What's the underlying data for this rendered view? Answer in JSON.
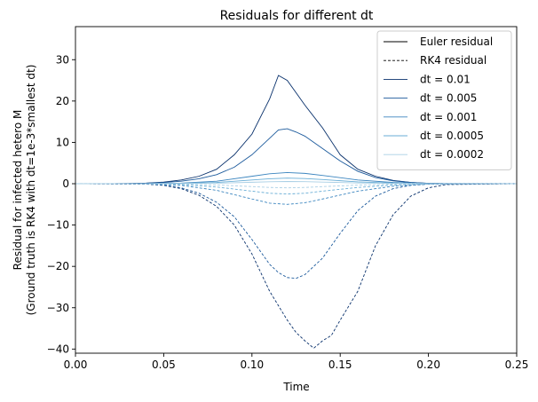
{
  "chart_data": {
    "type": "line",
    "title": "Residuals for different dt",
    "xlabel": "Time",
    "ylabel_lines": [
      "Residual for infected hetero M",
      "(Ground truth is RK4 with dt=1e-3*smallest dt)"
    ],
    "xlim": [
      0,
      0.25
    ],
    "ylim": [
      -41,
      38
    ],
    "xticks": [
      0,
      0.05,
      0.1,
      0.15,
      0.2,
      0.25
    ],
    "xtick_labels": [
      "0.00",
      "0.05",
      "0.10",
      "0.15",
      "0.20",
      "0.25"
    ],
    "yticks": [
      -40,
      -30,
      -20,
      -10,
      0,
      10,
      20,
      30
    ],
    "ytick_labels": [
      "−40",
      "−30",
      "−20",
      "−10",
      "0",
      "10",
      "20",
      "30"
    ],
    "grid": false,
    "legend_position": "top-right",
    "legend": [
      {
        "label": "Euler residual",
        "color": "#000000",
        "style": "solid"
      },
      {
        "label": "RK4 residual",
        "color": "#000000",
        "style": "dashed"
      },
      {
        "label": "dt = 0.01",
        "color": "#08306b",
        "style": "solid"
      },
      {
        "label": "dt = 0.005",
        "color": "#1c5a9c",
        "style": "solid"
      },
      {
        "label": "dt = 0.001",
        "color": "#3b85bf",
        "style": "solid"
      },
      {
        "label": "dt = 0.0005",
        "color": "#6aaed6",
        "style": "solid"
      },
      {
        "label": "dt = 0.0002",
        "color": "#a9cfe5",
        "style": "solid"
      }
    ],
    "series": [
      {
        "dt": "0.01",
        "method": "Euler",
        "color": "#08306b",
        "dash": false,
        "x": [
          0.0,
          0.02,
          0.03,
          0.04,
          0.05,
          0.06,
          0.07,
          0.08,
          0.09,
          0.1,
          0.11,
          0.115,
          0.12,
          0.125,
          0.13,
          0.14,
          0.15,
          0.16,
          0.17,
          0.18,
          0.19,
          0.2,
          0.21,
          0.25
        ],
        "y": [
          0,
          0,
          0.05,
          0.15,
          0.4,
          0.9,
          1.8,
          3.5,
          7.0,
          12.0,
          20.5,
          26.2,
          25.0,
          22.0,
          19.0,
          13.5,
          7.0,
          3.5,
          1.8,
          0.8,
          0.3,
          0.1,
          0,
          0
        ]
      },
      {
        "dt": "0.005",
        "method": "Euler",
        "color": "#1c5a9c",
        "dash": false,
        "x": [
          0.0,
          0.02,
          0.03,
          0.04,
          0.05,
          0.06,
          0.07,
          0.08,
          0.09,
          0.1,
          0.11,
          0.115,
          0.12,
          0.125,
          0.13,
          0.14,
          0.15,
          0.16,
          0.17,
          0.18,
          0.19,
          0.2,
          0.21,
          0.25
        ],
        "y": [
          0,
          0,
          0.05,
          0.12,
          0.3,
          0.6,
          1.2,
          2.2,
          4.0,
          7.0,
          11.0,
          13.0,
          13.3,
          12.5,
          11.5,
          8.5,
          5.5,
          3.0,
          1.5,
          0.7,
          0.3,
          0.1,
          0,
          0
        ]
      },
      {
        "dt": "0.001",
        "method": "Euler",
        "color": "#3b85bf",
        "dash": false,
        "x": [
          0.0,
          0.04,
          0.06,
          0.08,
          0.1,
          0.11,
          0.12,
          0.13,
          0.14,
          0.16,
          0.18,
          0.2,
          0.25
        ],
        "y": [
          0,
          0.03,
          0.15,
          0.6,
          1.8,
          2.4,
          2.7,
          2.5,
          2.0,
          0.9,
          0.3,
          0.05,
          0
        ]
      },
      {
        "dt": "0.0005",
        "method": "Euler",
        "color": "#6aaed6",
        "dash": false,
        "x": [
          0.0,
          0.04,
          0.06,
          0.08,
          0.1,
          0.11,
          0.12,
          0.13,
          0.14,
          0.16,
          0.18,
          0.2,
          0.25
        ],
        "y": [
          0,
          0.02,
          0.08,
          0.3,
          0.9,
          1.2,
          1.35,
          1.25,
          1.0,
          0.45,
          0.15,
          0.03,
          0
        ]
      },
      {
        "dt": "0.0002",
        "method": "Euler",
        "color": "#a9cfe5",
        "dash": false,
        "x": [
          0.0,
          0.04,
          0.06,
          0.08,
          0.1,
          0.11,
          0.12,
          0.13,
          0.14,
          0.16,
          0.18,
          0.2,
          0.25
        ],
        "y": [
          0,
          0.01,
          0.03,
          0.12,
          0.35,
          0.48,
          0.54,
          0.5,
          0.4,
          0.18,
          0.06,
          0.01,
          0
        ]
      },
      {
        "dt": "0.01",
        "method": "RK4",
        "color": "#08306b",
        "dash": true,
        "x": [
          0.0,
          0.04,
          0.05,
          0.06,
          0.07,
          0.08,
          0.09,
          0.1,
          0.11,
          0.12,
          0.125,
          0.13,
          0.135,
          0.14,
          0.145,
          0.15,
          0.16,
          0.17,
          0.18,
          0.19,
          0.2,
          0.21,
          0.25
        ],
        "y": [
          0,
          -0.1,
          -0.4,
          -1.2,
          -2.8,
          -5.5,
          -10.0,
          -17.0,
          -26.0,
          -33.0,
          -36.0,
          -38.0,
          -39.8,
          -38.0,
          -36.7,
          -33.0,
          -26.0,
          -15.0,
          -7.5,
          -3.0,
          -1.0,
          -0.2,
          0
        ]
      },
      {
        "dt": "0.005",
        "method": "RK4",
        "color": "#1c5a9c",
        "dash": true,
        "x": [
          0.0,
          0.04,
          0.05,
          0.06,
          0.07,
          0.08,
          0.09,
          0.1,
          0.11,
          0.115,
          0.12,
          0.125,
          0.13,
          0.14,
          0.15,
          0.16,
          0.17,
          0.18,
          0.19,
          0.2,
          0.21,
          0.25
        ],
        "y": [
          0,
          -0.08,
          -0.35,
          -1.0,
          -2.3,
          -4.5,
          -8.0,
          -13.5,
          -19.5,
          -21.5,
          -22.7,
          -22.9,
          -22.0,
          -18.0,
          -12.0,
          -6.5,
          -3.0,
          -1.2,
          -0.4,
          -0.1,
          0,
          0
        ]
      },
      {
        "dt": "0.001",
        "method": "RK4",
        "color": "#3b85bf",
        "dash": true,
        "x": [
          0.0,
          0.04,
          0.06,
          0.08,
          0.1,
          0.11,
          0.12,
          0.13,
          0.14,
          0.16,
          0.18,
          0.2,
          0.25
        ],
        "y": [
          0,
          -0.05,
          -0.4,
          -1.6,
          -3.7,
          -4.7,
          -5.0,
          -4.6,
          -3.7,
          -1.8,
          -0.6,
          -0.1,
          0
        ]
      },
      {
        "dt": "0.0005",
        "method": "RK4",
        "color": "#6aaed6",
        "dash": true,
        "x": [
          0.0,
          0.04,
          0.06,
          0.08,
          0.1,
          0.11,
          0.12,
          0.13,
          0.14,
          0.16,
          0.18,
          0.2,
          0.25
        ],
        "y": [
          0,
          -0.03,
          -0.2,
          -0.8,
          -1.8,
          -2.3,
          -2.5,
          -2.3,
          -1.8,
          -0.9,
          -0.3,
          -0.05,
          0
        ]
      },
      {
        "dt": "0.0002",
        "method": "RK4",
        "color": "#a9cfe5",
        "dash": true,
        "x": [
          0.0,
          0.04,
          0.06,
          0.08,
          0.1,
          0.11,
          0.12,
          0.13,
          0.14,
          0.16,
          0.18,
          0.2,
          0.25
        ],
        "y": [
          0,
          -0.01,
          -0.08,
          -0.3,
          -0.7,
          -0.9,
          -1.0,
          -0.9,
          -0.7,
          -0.35,
          -0.1,
          -0.02,
          0
        ]
      }
    ]
  }
}
